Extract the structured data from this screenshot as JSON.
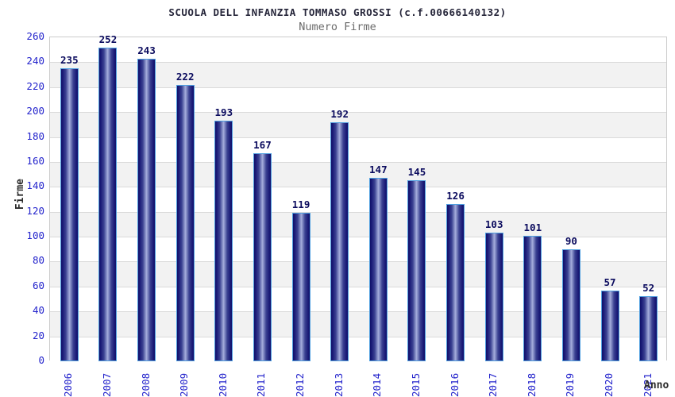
{
  "title": "SCUOLA DELL INFANZIA TOMMASO GROSSI (c.f.00666140132)",
  "subtitle": "Numero Firme",
  "chart_data": {
    "type": "bar",
    "title": "SCUOLA DELL INFANZIA TOMMASO GROSSI (c.f.00666140132)",
    "subtitle": "Numero Firme",
    "categories": [
      "2006",
      "2007",
      "2008",
      "2009",
      "2010",
      "2011",
      "2012",
      "2013",
      "2014",
      "2015",
      "2016",
      "2017",
      "2018",
      "2019",
      "2020",
      "2021"
    ],
    "values": [
      235,
      252,
      243,
      222,
      193,
      167,
      119,
      192,
      147,
      145,
      126,
      103,
      101,
      90,
      57,
      52
    ],
    "xlabel": "Anno",
    "ylabel": "Firme",
    "ylim": [
      0,
      260
    ],
    "ytick_step": 20,
    "yticks": [
      0,
      20,
      40,
      60,
      80,
      100,
      120,
      140,
      160,
      180,
      200,
      220,
      240,
      260
    ],
    "legend": "none",
    "grid": "horizontal-bands",
    "colors": {
      "bar_dark": "#10106a",
      "bar_light": "#a6aedd",
      "bar_border": "#4f9fe0",
      "value_label": "#0b0b5e",
      "tick_label": "#2424cc",
      "band_alt": "#f2f2f2",
      "band_main": "#ffffff",
      "gridline": "#dadada",
      "plot_border": "#cccccc",
      "title": "#26263a",
      "subtitle": "#6b6b6b",
      "axis_title": "#2c2c2c"
    }
  }
}
